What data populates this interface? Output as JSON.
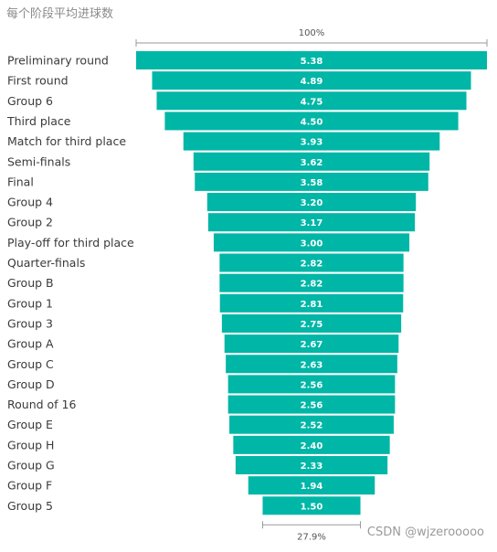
{
  "title": "每个阶段平均进球数",
  "watermark": "CSDN @wjzerooooo",
  "colors": {
    "bar": "#00b6a6",
    "axis": "#9a9a9a"
  },
  "chart_data": {
    "type": "bar",
    "subtype": "funnel",
    "title": "每个阶段平均进球数",
    "top_percent_label": "100%",
    "bottom_percent_label": "27.9%",
    "categories": [
      "Preliminary round",
      "First round",
      "Group 6",
      "Third place",
      "Match for third place",
      "Semi-finals",
      "Final",
      "Group 4",
      "Group 2",
      "Play-off for third place",
      "Quarter-finals",
      "Group B",
      "Group 1",
      "Group 3",
      "Group A",
      "Group C",
      "Group D",
      "Round of 16",
      "Group E",
      "Group H",
      "Group G",
      "Group F",
      "Group 5"
    ],
    "values": [
      5.38,
      4.89,
      4.75,
      4.5,
      3.93,
      3.62,
      3.58,
      3.2,
      3.17,
      3.0,
      2.82,
      2.82,
      2.81,
      2.75,
      2.67,
      2.63,
      2.56,
      2.56,
      2.52,
      2.4,
      2.33,
      1.94,
      1.5
    ],
    "value_labels": [
      "5.38",
      "4.89",
      "4.75",
      "4.50",
      "3.93",
      "3.62",
      "3.58",
      "3.20",
      "3.17",
      "3.00",
      "2.82",
      "2.82",
      "2.81",
      "2.75",
      "2.67",
      "2.63",
      "2.56",
      "2.56",
      "2.52",
      "2.40",
      "2.33",
      "1.94",
      "1.50"
    ]
  }
}
